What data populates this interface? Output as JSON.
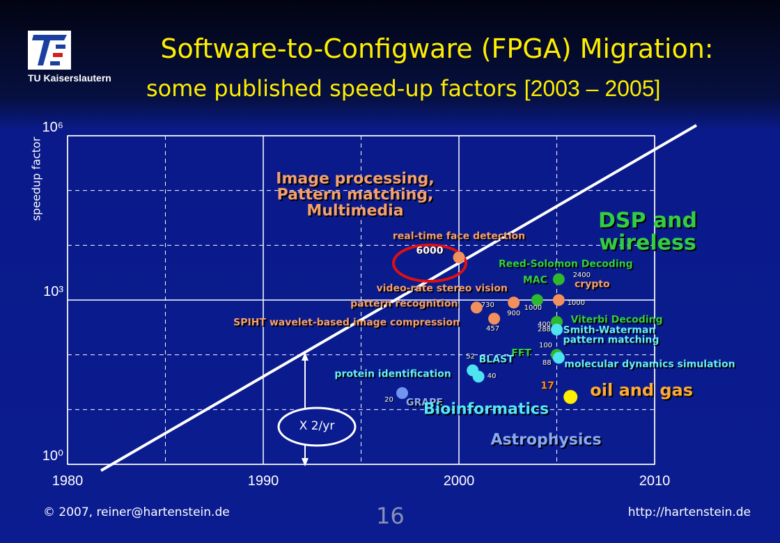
{
  "header": {
    "logo_text": "TU Kaiserslautern",
    "title": "Software-to-Configware (FPGA) Migration:",
    "subtitle": "some published speed-up factors",
    "date_range": "[2003 – 2005]"
  },
  "chart_data": {
    "type": "scatter",
    "y_label": "speedup factor",
    "x": [
      2000.0,
      2005.1,
      2005.1,
      2004.0,
      2002.8,
      2000.9,
      2001.8,
      2005.0,
      2005.0,
      2005.0,
      2005.1,
      2000.7,
      2001.0,
      2005.7,
      1997.1
    ],
    "values": [
      6000,
      2400,
      1000,
      1000,
      900,
      730,
      457,
      400,
      288,
      100,
      88,
      52,
      40,
      17,
      20
    ],
    "labels": [
      "real-time face detection",
      "Reed-Solomon Decoding",
      "crypto",
      "MAC",
      "video-rate stereo vision",
      "pattern recognition",
      "SPIHT wavelet-based image compression",
      "Viterbi Decoding",
      "Smith-Waterman\npattern matching",
      "FFT",
      "molecular dynamics simulation",
      "BLAST",
      "protein identification",
      "oil and gas",
      "GRAPE"
    ],
    "colors": [
      "#f2905e",
      "#2eb82e",
      "#f2905e",
      "#2eb82e",
      "#f2905e",
      "#f2905e",
      "#f2905e",
      "#2eb82e",
      "#4de3f0",
      "#2eb82e",
      "#4de3f0",
      "#4de3f0",
      "#4de3f0",
      "#ffee00",
      "#6f95f0"
    ],
    "label_colors": [
      "#f4a070",
      "#33cc44",
      "#f4a070",
      "#33cc44",
      "#f4a070",
      "#f4a070",
      "#f4a070",
      "#33cc44",
      "#66eeff",
      "#33cc44",
      "#66eeff",
      "#66eeff",
      "#66eeff",
      "#ffaa33",
      "#8aaaf8"
    ],
    "xlim": [
      1980,
      2010
    ],
    "xticks": [
      1980,
      1990,
      2000,
      2010
    ],
    "ylim": [
      1,
      1000000
    ],
    "yticks": [
      {
        "value": 1,
        "label": "10⁰"
      },
      {
        "value": 1000,
        "label": "10³"
      },
      {
        "value": 1000000,
        "label": "10⁶"
      }
    ],
    "log_y": true,
    "grid": true,
    "annotations": [
      "Image processing,\nPattern matching,\nMultimedia",
      "DSP and wireless",
      "Bioinformatics",
      "Astrophysics",
      "X 2/yr"
    ]
  },
  "footer": {
    "copyright": "© 2007, reiner@hartenstein.de",
    "page": "16",
    "url": "http://hartenstein.de"
  }
}
